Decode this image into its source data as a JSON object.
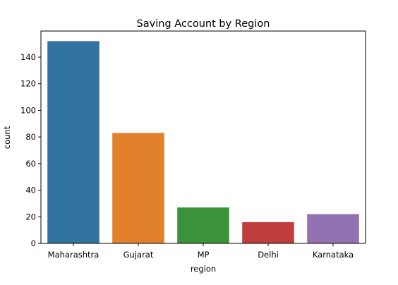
{
  "chart_data": {
    "type": "bar",
    "title": "Saving Account by Region",
    "xlabel": "region",
    "ylabel": "count",
    "categories": [
      "Maharashtra",
      "Gujarat",
      "MP",
      "Delhi",
      "Karnataka"
    ],
    "values": [
      152,
      83,
      27,
      16,
      22
    ],
    "colors": [
      "#3274a1",
      "#e1812c",
      "#3a923a",
      "#c03d3e",
      "#9372b2"
    ],
    "ylim": [
      0,
      159.6
    ],
    "yticks": [
      0,
      20,
      40,
      60,
      80,
      100,
      120,
      140
    ],
    "grid": false,
    "legend": "none"
  }
}
